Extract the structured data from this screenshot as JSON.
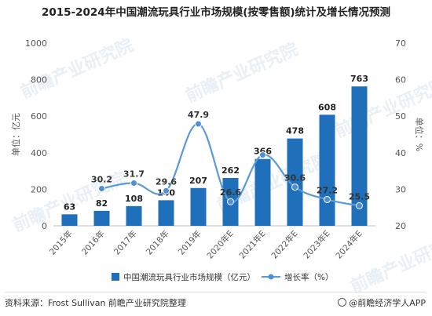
{
  "title": "2015-2024年中国潮流玩具行业市场规模(按零售额)统计及增长情况预测",
  "watermark": "前瞻产业研究院",
  "footer": {
    "source": "资料来源：Frost Sullivan 前瞻产业研究院整理",
    "brand": "@前瞻经济学人APP"
  },
  "colors": {
    "bar": "#1f6fba",
    "line": "#5b9bd5",
    "marker": "#4f8fd6"
  },
  "chart_data": {
    "type": "bar",
    "categories": [
      "2015年",
      "2016年",
      "2017年",
      "2018年",
      "2019年",
      "2020年E",
      "2021年E",
      "2022年E",
      "2023年E",
      "2024年E"
    ],
    "series": [
      {
        "name": "中国潮流玩具行业市场规模（亿元）",
        "type": "bar",
        "axis": "left",
        "values": [
          63,
          82,
          108,
          140,
          207,
          262,
          366,
          478,
          608,
          763
        ]
      },
      {
        "name": "增长率（%）",
        "type": "line",
        "axis": "right",
        "values": [
          null,
          30.2,
          31.7,
          29.6,
          47.9,
          26.6,
          39.4,
          30.6,
          27.2,
          25.5
        ]
      }
    ],
    "data_labels_line": [
      "",
      "30.2",
      "31.7",
      "29.6",
      "47.9",
      "26.6",
      "",
      "30.6",
      "27.2",
      "25.5"
    ],
    "ylabel": "单位：亿元",
    "ylabel_right": "单位：%",
    "ylim": [
      0,
      1000
    ],
    "yticks": [
      0,
      200,
      400,
      600,
      800,
      1000
    ],
    "ylim_right": [
      20,
      70
    ],
    "yticks_right": [
      20,
      30,
      40,
      50,
      60,
      70
    ],
    "grid": false,
    "legend": "bottom"
  }
}
